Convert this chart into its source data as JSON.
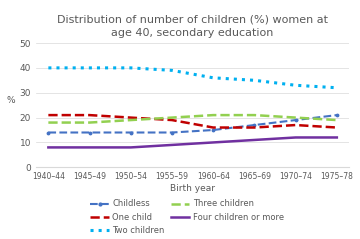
{
  "title": "Distribution of number of children (%) women at\nage 40, secondary education",
  "xlabel": "Birth year",
  "ylabel": "%",
  "categories": [
    "1940–44",
    "1945–49",
    "1950–54",
    "1955–59",
    "1960–64",
    "1965–69",
    "1970–74",
    "1975–78"
  ],
  "ylim": [
    0,
    50
  ],
  "yticks": [
    0,
    10,
    20,
    30,
    40,
    50
  ],
  "series": {
    "Childless": [
      14,
      14,
      14,
      14,
      15,
      17,
      19,
      21
    ],
    "One child": [
      21,
      21,
      20,
      19,
      16,
      16,
      17,
      16
    ],
    "Two children": [
      40,
      40,
      40,
      39,
      36,
      35,
      33,
      32
    ],
    "Three children": [
      18,
      18,
      19,
      20,
      21,
      21,
      20,
      19
    ],
    "Four children or more": [
      8,
      8,
      8,
      9,
      10,
      11,
      12,
      12
    ]
  },
  "colors": {
    "Childless": "#4472C4",
    "One child": "#C00000",
    "Two children": "#00B0F0",
    "Three children": "#92D050",
    "Four children or more": "#7030A0"
  },
  "title_color": "#595959",
  "axis_color": "#808080",
  "tick_color": "#595959",
  "grid_color": "#D9D9D9",
  "background_color": "#FFFFFF"
}
